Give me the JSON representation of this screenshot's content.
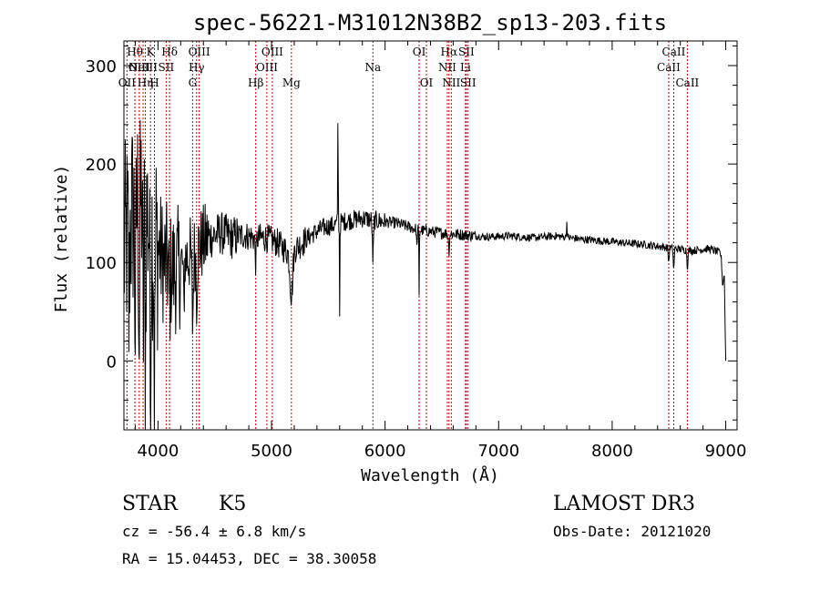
{
  "chart_data": {
    "type": "line",
    "title": "spec-56221-M31012N38B2_sp13-203.fits",
    "xlabel": "Wavelength (Å)",
    "ylabel": "Flux (relative)",
    "xlim": [
      3700,
      9100
    ],
    "ylim": [
      -70,
      325
    ],
    "xticks": [
      {
        "value": 4000,
        "label": "4000"
      },
      {
        "value": 5000,
        "label": "5000"
      },
      {
        "value": 6000,
        "label": "6000"
      },
      {
        "value": 7000,
        "label": "7000"
      },
      {
        "value": 8000,
        "label": "8000"
      },
      {
        "value": 9000,
        "label": "9000"
      }
    ],
    "yticks": [
      {
        "value": 0,
        "label": "0"
      },
      {
        "value": 100,
        "label": "100"
      },
      {
        "value": 200,
        "label": "200"
      },
      {
        "value": 300,
        "label": "300"
      }
    ],
    "spectrum_anchors": [
      [
        3700,
        110
      ],
      [
        3780,
        150
      ],
      [
        3850,
        170
      ],
      [
        3950,
        130
      ],
      [
        4050,
        100
      ],
      [
        4150,
        90
      ],
      [
        4250,
        105
      ],
      [
        4350,
        115
      ],
      [
        4450,
        125
      ],
      [
        4550,
        130
      ],
      [
        4650,
        125
      ],
      [
        4750,
        128
      ],
      [
        4850,
        125
      ],
      [
        4950,
        125
      ],
      [
        5050,
        120
      ],
      [
        5150,
        110
      ],
      [
        5250,
        118
      ],
      [
        5350,
        128
      ],
      [
        5450,
        135
      ],
      [
        5550,
        138
      ],
      [
        5650,
        142
      ],
      [
        5800,
        145
      ],
      [
        5950,
        142
      ],
      [
        6100,
        140
      ],
      [
        6300,
        133
      ],
      [
        6500,
        130
      ],
      [
        6700,
        128
      ],
      [
        6900,
        126
      ],
      [
        7100,
        127
      ],
      [
        7300,
        125
      ],
      [
        7500,
        127
      ],
      [
        7700,
        124
      ],
      [
        7900,
        122
      ],
      [
        8100,
        120
      ],
      [
        8300,
        118
      ],
      [
        8500,
        115
      ],
      [
        8700,
        112
      ],
      [
        8850,
        114
      ],
      [
        8950,
        110
      ],
      [
        9000,
        105
      ]
    ],
    "spectrum_features": [
      {
        "x": 3745,
        "depth": 90,
        "width": 4
      },
      {
        "x": 3800,
        "depth": 120,
        "width": 5
      },
      {
        "x": 3835,
        "depth": 140,
        "width": 5
      },
      {
        "x": 3870,
        "depth": 130,
        "width": 5
      },
      {
        "x": 3889,
        "depth": 150,
        "width": 4
      },
      {
        "x": 3934,
        "depth": 190,
        "width": 4
      },
      {
        "x": 3969,
        "depth": 170,
        "width": 4
      },
      {
        "x": 4102,
        "depth": 40,
        "width": 5
      },
      {
        "x": 4227,
        "depth": 50,
        "width": 4
      },
      {
        "x": 4305,
        "depth": 70,
        "width": 6
      },
      {
        "x": 4340,
        "depth": 45,
        "width": 5
      },
      {
        "x": 4861,
        "depth": 25,
        "width": 5
      },
      {
        "x": 5175,
        "depth": 45,
        "width": 12
      },
      {
        "x": 5585,
        "depth": -120,
        "width": 2
      },
      {
        "x": 5600,
        "depth": 90,
        "width": 2
      },
      {
        "x": 5893,
        "depth": 40,
        "width": 5
      },
      {
        "x": 6280,
        "depth": 20,
        "width": 3
      },
      {
        "x": 6300,
        "depth": 70,
        "width": 2
      },
      {
        "x": 6563,
        "depth": 18,
        "width": 4
      },
      {
        "x": 7600,
        "depth": -15,
        "width": 3
      },
      {
        "x": 8498,
        "depth": 15,
        "width": 4
      },
      {
        "x": 8542,
        "depth": 22,
        "width": 4
      },
      {
        "x": 8662,
        "depth": 18,
        "width": 4
      },
      {
        "x": 8975,
        "depth": 30,
        "width": 8
      },
      {
        "x": 9000,
        "depth": 100,
        "width": 6
      }
    ],
    "lines": [
      {
        "label": "OII",
        "x": 3727,
        "row": 2
      },
      {
        "label": "Hθ",
        "x": 3797,
        "row": 0
      },
      {
        "label": "OIII",
        "x": 3835,
        "row": 1
      },
      {
        "label": "NeIII",
        "x": 3869,
        "row": 1
      },
      {
        "label": "Hη",
        "x": 3889,
        "row": 2
      },
      {
        "label": "K",
        "x": 3934,
        "row": 0
      },
      {
        "label": "H",
        "x": 3969,
        "row": 2
      },
      {
        "label": "SII",
        "x": 4072,
        "row": 1
      },
      {
        "label": "Hδ",
        "x": 4102,
        "row": 0
      },
      {
        "label": "G",
        "x": 4305,
        "row": 2
      },
      {
        "label": "Hγ",
        "x": 4340,
        "row": 1
      },
      {
        "label": "OIII",
        "x": 4363,
        "row": 0
      },
      {
        "label": "Hβ",
        "x": 4861,
        "row": 2
      },
      {
        "label": "OIII",
        "x": 4959,
        "row": 1
      },
      {
        "label": "OIII",
        "x": 5007,
        "row": 0
      },
      {
        "label": "Mg",
        "x": 5175,
        "row": 2
      },
      {
        "label": "Na",
        "x": 5893,
        "row": 1
      },
      {
        "label": "OI",
        "x": 6300,
        "row": 0
      },
      {
        "label": "OI",
        "x": 6364,
        "row": 2
      },
      {
        "label": "NII",
        "x": 6548,
        "row": 1
      },
      {
        "label": "Hα",
        "x": 6563,
        "row": 0
      },
      {
        "label": "NII",
        "x": 6583,
        "row": 2
      },
      {
        "label": "Li",
        "x": 6708,
        "row": 1
      },
      {
        "label": "SII",
        "x": 6716,
        "row": 0
      },
      {
        "label": "SII",
        "x": 6731,
        "row": 2
      },
      {
        "label": "CaII",
        "x": 8498,
        "row": 1
      },
      {
        "label": "CaII",
        "x": 8542,
        "row": 0
      },
      {
        "label": "CaII",
        "x": 8662,
        "row": 2
      }
    ]
  },
  "info": {
    "object_class": "STAR",
    "subclass": "K5",
    "survey": "LAMOST DR3",
    "redshift": "cz = -56.4 ± 6.8 km/s",
    "obs_date": "Obs-Date: 20121020",
    "coords": "RA =  15.04453, DEC =  38.30058"
  },
  "colors": {
    "spectrum": "#000000",
    "line_markers": "#cc0000",
    "axes": "#000000"
  }
}
